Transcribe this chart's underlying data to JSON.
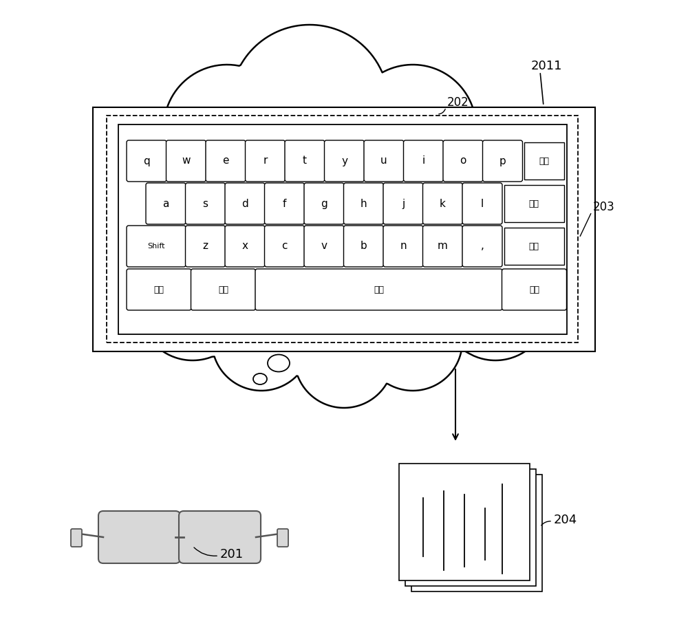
{
  "bg_color": "#ffffff",
  "label_2011": "2011",
  "label_201": "201",
  "label_202": "202",
  "label_203": "203",
  "label_204": "204",
  "row1_keys": [
    "q",
    "w",
    "e",
    "r",
    "t",
    "y",
    "u",
    "i",
    "o",
    "p"
  ],
  "row2_keys": [
    "a",
    "s",
    "d",
    "f",
    "g",
    "h",
    "j",
    "k",
    "l"
  ],
  "row3_keys": [
    "z",
    "x",
    "c",
    "v",
    "b",
    "n",
    "m",
    ","
  ],
  "row3_special": "Shift",
  "row1_special": "隐藏",
  "row2_special": "清空",
  "row3_special2": "删除",
  "bottom_keys": [
    "数字",
    "符号",
    "空格",
    "确定"
  ],
  "key_color": "#ffffff",
  "key_border": "#000000"
}
